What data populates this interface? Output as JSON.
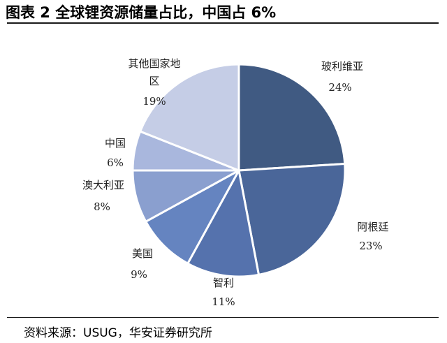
{
  "header": {
    "title": "图表 2  全球锂资源储量占比，中国占 6%"
  },
  "footer": {
    "source": "资料来源：USUG，华安证券研究所"
  },
  "chart_data": {
    "type": "pie",
    "title": "图表 2  全球锂资源储量占比，中国占 6%",
    "slices": [
      {
        "name": "玻利维亚",
        "value": 24,
        "label": "24%",
        "color": "#405a82"
      },
      {
        "name": "阿根廷",
        "value": 23,
        "label": "23%",
        "color": "#4a6699"
      },
      {
        "name": "智利",
        "value": 11,
        "label": "11%",
        "color": "#5572ad"
      },
      {
        "name": "美国",
        "value": 9,
        "label": "9%",
        "color": "#6584c0"
      },
      {
        "name": "澳大利亚",
        "value": 8,
        "label": "8%",
        "color": "#8a9fcf"
      },
      {
        "name": "中国",
        "value": 6,
        "label": "6%",
        "color": "#a9b7dd"
      },
      {
        "name": "其他国家地区",
        "value": 19,
        "label": "19%",
        "color": "#c5cde6"
      }
    ]
  }
}
